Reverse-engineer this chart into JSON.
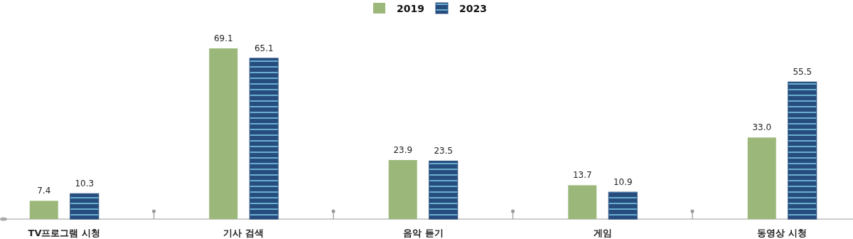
{
  "chart_data": {
    "type": "bar",
    "categories": [
      "TV프로그램 시청",
      "기사 검색",
      "음악 듣기",
      "게임",
      "동영상 시청"
    ],
    "series": [
      {
        "name": "2019",
        "color": "#9bb87a",
        "values": [
          7.4,
          69.1,
          23.9,
          13.7,
          33.0
        ],
        "value_labels": [
          "7.4",
          "69.1",
          "23.9",
          "13.7",
          "33.0"
        ]
      },
      {
        "name": "2023",
        "color": "#264d7e",
        "values": [
          10.3,
          65.1,
          23.5,
          10.9,
          55.5
        ],
        "value_labels": [
          "10.3",
          "65.1",
          "23.5",
          "10.9",
          "55.5"
        ]
      }
    ],
    "legend": "top"
  }
}
